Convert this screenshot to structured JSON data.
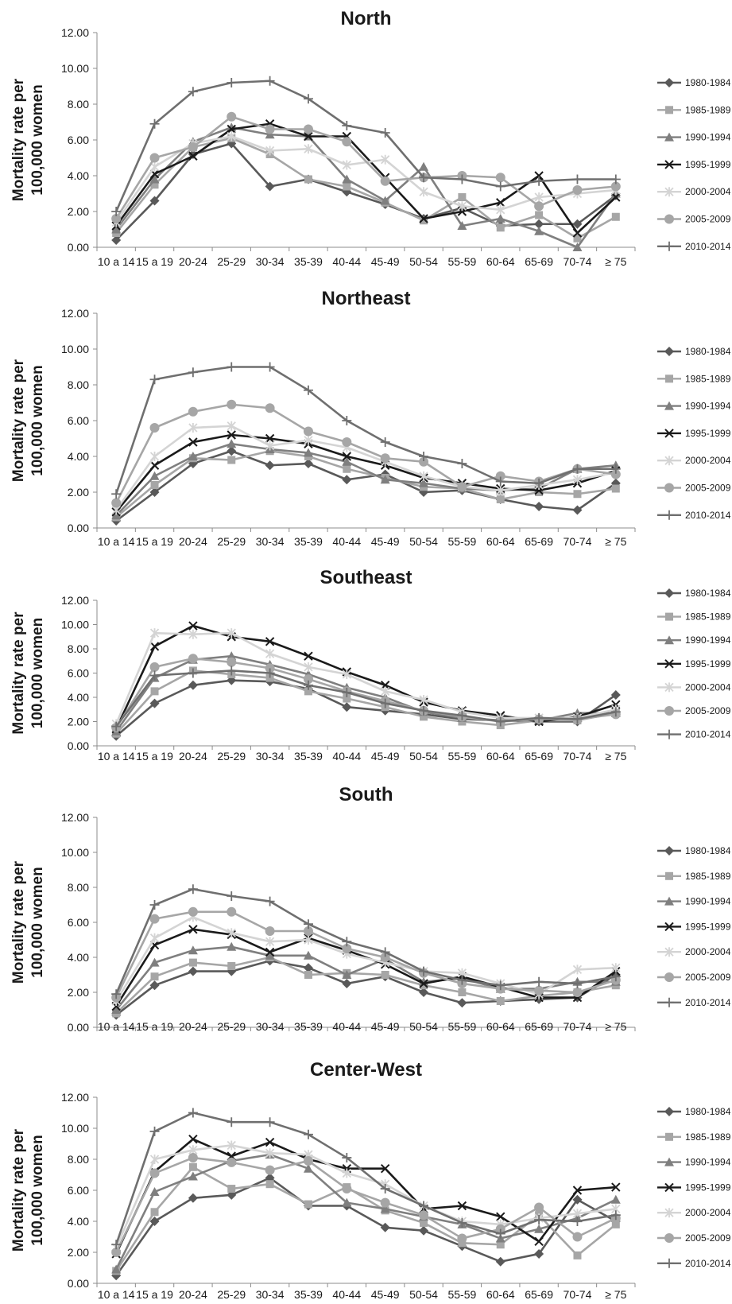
{
  "ylabel_line1": "Mortality rate per",
  "ylabel_line2": "100,000 women",
  "series_styles": [
    {
      "name": "1980-1984",
      "color": "#595959",
      "marker": "diamond"
    },
    {
      "name": "1985-1989",
      "color": "#a6a6a6",
      "marker": "square"
    },
    {
      "name": "1990-1994",
      "color": "#7f7f7f",
      "marker": "triangle"
    },
    {
      "name": "1995-1999",
      "color": "#1a1a1a",
      "marker": "x"
    },
    {
      "name": "2000-2004",
      "color": "#d4d4d4",
      "marker": "star"
    },
    {
      "name": "2005-2009",
      "color": "#a6a6a6",
      "marker": "circle"
    },
    {
      "name": "2010-2014",
      "color": "#6f6f6f",
      "marker": "plus"
    }
  ],
  "chart_data": [
    {
      "type": "line",
      "title": "North",
      "ylabel": "Mortality rate per 100,000 women",
      "ylim": [
        0,
        12
      ],
      "yticks": [
        "0.00",
        "2.00",
        "4.00",
        "6.00",
        "8.00",
        "10.00",
        "12.00"
      ],
      "categories": [
        "10 a 14",
        "15 a 19",
        "20-24",
        "25-29",
        "30-34",
        "35-39",
        "40-44",
        "45-49",
        "50-54",
        "55-59",
        "60-64",
        "65-69",
        "70-74",
        "≥ 75"
      ],
      "legend": "right",
      "grid": false,
      "series": [
        {
          "name": "1980-1984",
          "values": [
            0.4,
            2.6,
            5.2,
            5.8,
            3.4,
            3.8,
            3.1,
            2.4,
            1.6,
            2.2,
            1.2,
            1.3,
            1.3,
            2.9
          ]
        },
        {
          "name": "1985-1989",
          "values": [
            0.8,
            3.5,
            5.6,
            6.1,
            5.2,
            3.8,
            3.4,
            2.5,
            1.5,
            2.8,
            1.1,
            1.8,
            0.5,
            1.7
          ]
        },
        {
          "name": "1990-1994",
          "values": [
            1.0,
            3.8,
            5.9,
            6.7,
            6.3,
            6.2,
            3.8,
            2.6,
            4.5,
            1.2,
            1.6,
            0.9,
            0.0,
            3.0
          ]
        },
        {
          "name": "1995-1999",
          "values": [
            1.2,
            4.1,
            5.1,
            6.6,
            6.9,
            6.2,
            6.2,
            3.9,
            1.6,
            2.0,
            2.5,
            4.0,
            0.8,
            2.8
          ]
        },
        {
          "name": "2000-2004",
          "values": [
            1.4,
            4.5,
            5.8,
            6.2,
            5.4,
            5.5,
            4.6,
            4.9,
            3.1,
            2.3,
            2.1,
            2.8,
            3.0,
            3.2
          ]
        },
        {
          "name": "2005-2009",
          "values": [
            1.6,
            5.0,
            5.6,
            7.3,
            6.6,
            6.6,
            5.9,
            3.7,
            3.9,
            4.0,
            3.9,
            2.3,
            3.2,
            3.4
          ]
        },
        {
          "name": "2010-2014",
          "values": [
            2.0,
            6.9,
            8.7,
            9.2,
            9.3,
            8.3,
            6.8,
            6.4,
            3.9,
            3.8,
            3.4,
            3.7,
            3.8,
            3.8
          ]
        }
      ]
    },
    {
      "type": "line",
      "title": "Northeast",
      "ylabel": "Mortality rate per 100,000 women",
      "ylim": [
        0,
        12
      ],
      "yticks": [
        "0.00",
        "2.00",
        "4.00",
        "6.00",
        "8.00",
        "10.00",
        "12.00"
      ],
      "categories": [
        "10 a 14",
        "15 a 19",
        "20-24",
        "25-29",
        "30-34",
        "35-39",
        "40-44",
        "45-49",
        "50-54",
        "55-59",
        "60-64",
        "65-69",
        "70-74",
        "≥ 75"
      ],
      "legend": "right",
      "grid": false,
      "series": [
        {
          "name": "1980-1984",
          "values": [
            0.4,
            2.0,
            3.6,
            4.3,
            3.5,
            3.6,
            2.7,
            3.0,
            2.0,
            2.1,
            1.6,
            1.2,
            1.0,
            2.5
          ]
        },
        {
          "name": "1985-1989",
          "values": [
            0.6,
            2.4,
            3.9,
            3.8,
            4.3,
            4.0,
            3.3,
            2.8,
            2.3,
            2.2,
            1.6,
            2.0,
            1.9,
            2.2
          ]
        },
        {
          "name": "1990-1994",
          "values": [
            0.7,
            2.9,
            4.0,
            4.7,
            4.4,
            4.2,
            3.7,
            2.7,
            2.5,
            2.2,
            2.1,
            2.2,
            3.3,
            3.5
          ]
        },
        {
          "name": "1995-1999",
          "values": [
            0.9,
            3.5,
            4.8,
            5.2,
            5.0,
            4.7,
            4.0,
            3.5,
            2.8,
            2.5,
            2.2,
            2.1,
            2.5,
            3.2
          ]
        },
        {
          "name": "2000-2004",
          "values": [
            1.0,
            4.0,
            5.6,
            5.7,
            4.6,
            4.9,
            4.5,
            3.7,
            2.9,
            2.3,
            2.1,
            2.4,
            2.7,
            3.1
          ]
        },
        {
          "name": "2005-2009",
          "values": [
            1.4,
            5.6,
            6.5,
            6.9,
            6.7,
            5.4,
            4.8,
            3.9,
            3.7,
            2.3,
            2.9,
            2.6,
            3.3,
            3.0
          ]
        },
        {
          "name": "2010-2014",
          "values": [
            1.9,
            8.3,
            8.7,
            9.0,
            9.0,
            7.7,
            6.0,
            4.8,
            4.0,
            3.6,
            2.6,
            2.5,
            3.3,
            3.3
          ]
        }
      ]
    },
    {
      "type": "line",
      "title": "Southeast",
      "ylabel": "Mortality rate per 100,000 women",
      "ylim": [
        0,
        12
      ],
      "yticks": [
        "0.00",
        "2.00",
        "4.00",
        "6.00",
        "8.00",
        "10.00",
        "12.00"
      ],
      "categories": [
        "10 a 14",
        "15 a 19",
        "20-24",
        "25-29",
        "30-34",
        "35-39",
        "40-44",
        "45-49",
        "50-54",
        "55-59",
        "60-64",
        "65-69",
        "70-74",
        "≥ 75"
      ],
      "legend": "right",
      "grid": false,
      "series": [
        {
          "name": "1980-1984",
          "values": [
            0.8,
            3.5,
            5.0,
            5.4,
            5.3,
            4.7,
            3.2,
            2.9,
            2.6,
            2.2,
            2.1,
            2.0,
            2.0,
            4.2
          ]
        },
        {
          "name": "1985-1989",
          "values": [
            1.0,
            4.5,
            6.2,
            5.9,
            5.6,
            4.5,
            3.9,
            3.2,
            2.4,
            2.0,
            1.7,
            2.1,
            2.1,
            2.7
          ]
        },
        {
          "name": "1990-1994",
          "values": [
            1.2,
            5.6,
            7.1,
            7.4,
            6.7,
            5.9,
            4.8,
            4.0,
            2.8,
            2.3,
            2.1,
            2.1,
            2.7,
            2.7
          ]
        },
        {
          "name": "1995-1999",
          "values": [
            1.4,
            8.2,
            9.9,
            9.0,
            8.6,
            7.4,
            6.1,
            5.0,
            3.6,
            2.9,
            2.5,
            2.0,
            2.4,
            3.4
          ]
        },
        {
          "name": "2000-2004",
          "values": [
            1.8,
            9.3,
            9.2,
            9.3,
            7.6,
            6.5,
            5.9,
            4.5,
            3.8,
            2.8,
            2.3,
            2.3,
            2.3,
            3.0
          ]
        },
        {
          "name": "2005-2009",
          "values": [
            1.5,
            6.5,
            7.2,
            6.9,
            6.4,
            5.5,
            4.5,
            3.7,
            2.9,
            2.4,
            2.0,
            2.2,
            2.2,
            2.6
          ]
        },
        {
          "name": "2010-2014",
          "values": [
            1.6,
            5.8,
            6.0,
            6.2,
            6.0,
            5.0,
            4.4,
            3.5,
            2.9,
            2.5,
            2.0,
            2.3,
            2.2,
            2.8
          ]
        }
      ]
    },
    {
      "type": "line",
      "title": "South",
      "ylabel": "Mortality rate per 100,000 women",
      "ylim": [
        0,
        12
      ],
      "yticks": [
        "0.00",
        "2.00",
        "4.00",
        "6.00",
        "8.00",
        "10.00",
        "12.00"
      ],
      "categories": [
        "10 a 14",
        "15 a 19",
        "20-24",
        "25-29",
        "30-34",
        "35-39",
        "40-44",
        "45-49",
        "50-54",
        "55-59",
        "60-64",
        "65-69",
        "70-74",
        "≥ 75"
      ],
      "legend": "right",
      "grid": false,
      "series": [
        {
          "name": "1980-1984",
          "values": [
            0.7,
            2.4,
            3.2,
            3.2,
            3.8,
            3.4,
            2.5,
            2.9,
            2.0,
            1.4,
            1.5,
            1.6,
            1.7,
            3.0
          ]
        },
        {
          "name": "1985-1989",
          "values": [
            0.8,
            2.9,
            3.7,
            3.5,
            4.0,
            3.0,
            3.1,
            3.0,
            2.4,
            2.0,
            1.5,
            1.8,
            2.0,
            2.4
          ]
        },
        {
          "name": "1990-1994",
          "values": [
            1.0,
            3.7,
            4.4,
            4.6,
            4.1,
            4.1,
            3.0,
            3.9,
            2.6,
            2.8,
            2.2,
            2.2,
            2.6,
            2.6
          ]
        },
        {
          "name": "1995-1999",
          "values": [
            1.2,
            4.7,
            5.6,
            5.3,
            4.3,
            5.1,
            4.4,
            3.6,
            2.5,
            2.9,
            2.3,
            1.7,
            1.7,
            3.2
          ]
        },
        {
          "name": "2000-2004",
          "values": [
            1.5,
            5.1,
            6.3,
            5.4,
            4.9,
            5.0,
            4.2,
            3.7,
            3.2,
            3.1,
            2.5,
            1.9,
            3.3,
            3.4
          ]
        },
        {
          "name": "2005-2009",
          "values": [
            1.7,
            6.2,
            6.6,
            6.6,
            5.5,
            5.5,
            4.5,
            4.0,
            3.1,
            2.5,
            2.2,
            2.1,
            2.0,
            2.7
          ]
        },
        {
          "name": "2010-2014",
          "values": [
            1.9,
            7.0,
            7.9,
            7.5,
            7.2,
            5.9,
            4.9,
            4.3,
            3.2,
            2.7,
            2.4,
            2.6,
            2.5,
            2.9
          ]
        }
      ]
    },
    {
      "type": "line",
      "title": "Center-West",
      "ylabel": "Mortality rate per 100,000 women",
      "ylim": [
        0,
        12
      ],
      "yticks": [
        "0.00",
        "2.00",
        "4.00",
        "6.00",
        "8.00",
        "10.00",
        "12.00"
      ],
      "categories": [
        "10 a 14",
        "15 a 19",
        "20-24",
        "25-29",
        "30-34",
        "35-39",
        "40-44",
        "45-49",
        "50-54",
        "55-59",
        "60-64",
        "65-69",
        "70-74",
        "≥ 75"
      ],
      "legend": "right",
      "grid": false,
      "series": [
        {
          "name": "1980-1984",
          "values": [
            0.5,
            4.0,
            5.5,
            5.7,
            6.8,
            5.0,
            5.0,
            3.6,
            3.4,
            2.4,
            1.4,
            1.9,
            5.4,
            4.0
          ]
        },
        {
          "name": "1985-1989",
          "values": [
            0.8,
            4.6,
            7.5,
            6.1,
            6.4,
            5.1,
            6.2,
            4.7,
            3.9,
            2.6,
            2.5,
            4.4,
            1.8,
            3.8
          ]
        },
        {
          "name": "1990-1994",
          "values": [
            0.9,
            5.9,
            6.9,
            7.9,
            8.3,
            7.4,
            5.2,
            4.8,
            4.3,
            3.8,
            2.9,
            3.5,
            4.2,
            5.4
          ]
        },
        {
          "name": "1995-1999",
          "values": [
            1.9,
            7.2,
            9.3,
            8.2,
            9.1,
            8.0,
            7.4,
            7.4,
            4.8,
            5.0,
            4.3,
            2.7,
            6.0,
            6.2
          ]
        },
        {
          "name": "2000-2004",
          "values": [
            2.3,
            8.0,
            8.6,
            8.9,
            8.4,
            8.3,
            7.1,
            6.4,
            5.0,
            4.0,
            3.8,
            4.2,
            4.5,
            4.8
          ]
        },
        {
          "name": "2005-2009",
          "values": [
            2.0,
            7.1,
            8.1,
            7.8,
            7.3,
            7.9,
            6.1,
            5.2,
            4.4,
            2.9,
            3.5,
            4.9,
            3.0,
            4.2
          ]
        },
        {
          "name": "2010-2014",
          "values": [
            2.5,
            9.8,
            11.0,
            10.4,
            10.4,
            9.6,
            8.1,
            6.1,
            5.0,
            3.9,
            3.2,
            4.1,
            4.0,
            4.4
          ]
        }
      ]
    }
  ]
}
